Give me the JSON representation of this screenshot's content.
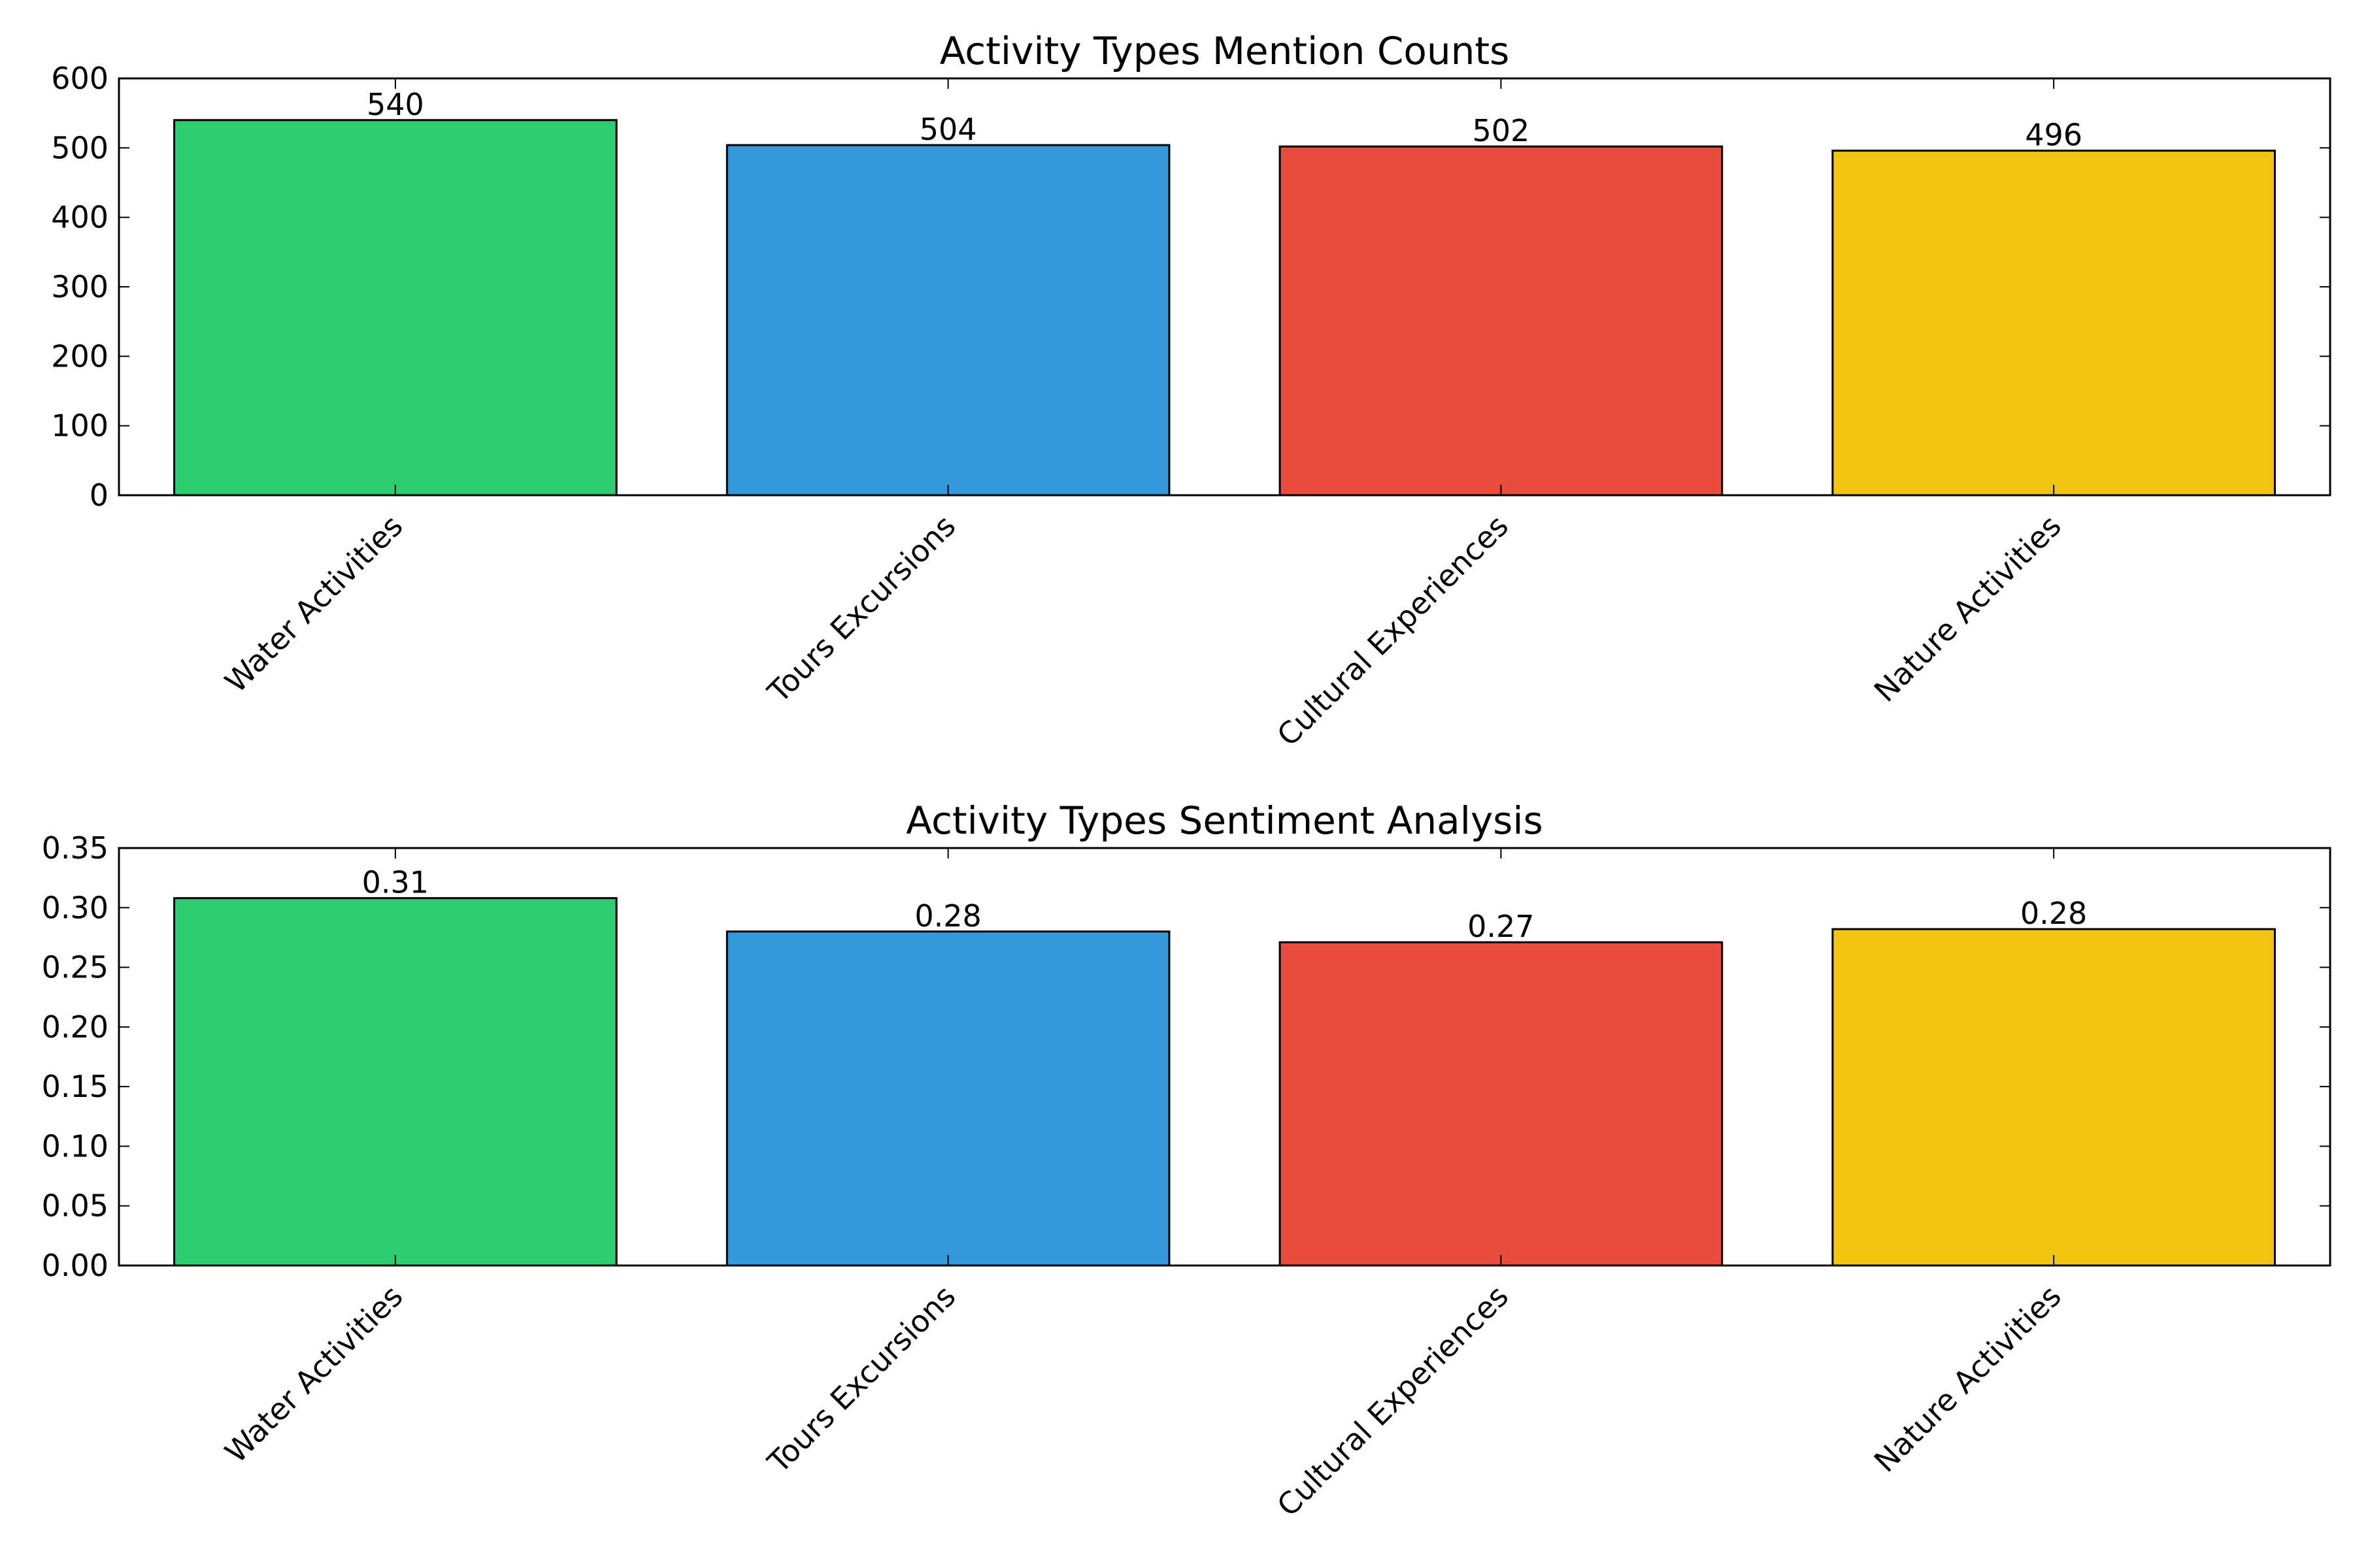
{
  "chart_data": [
    {
      "type": "bar",
      "title": "Activity Types Mention Counts",
      "categories": [
        "Water Activities",
        "Tours Excursions",
        "Cultural Experiences",
        "Nature Activities"
      ],
      "values": [
        540,
        504,
        502,
        496
      ],
      "value_labels": [
        "540",
        "504",
        "502",
        "496"
      ],
      "colors": [
        "#2ecc71",
        "#3498db",
        "#e74c3c",
        "#f1c40f"
      ],
      "ylim": [
        0,
        600
      ],
      "yticks": [
        0,
        100,
        200,
        300,
        400,
        500,
        600
      ],
      "ytick_labels": [
        "0",
        "100",
        "200",
        "300",
        "400",
        "500",
        "600"
      ],
      "xlabel": "",
      "ylabel": "",
      "grid": false
    },
    {
      "type": "bar",
      "title": "Activity Types Sentiment Analysis",
      "categories": [
        "Water Activities",
        "Tours Excursions",
        "Cultural Experiences",
        "Nature Activities"
      ],
      "values": [
        0.308,
        0.28,
        0.271,
        0.282
      ],
      "value_labels": [
        "0.31",
        "0.28",
        "0.27",
        "0.28"
      ],
      "colors": [
        "#2ecc71",
        "#3498db",
        "#e74c3c",
        "#f1c40f"
      ],
      "ylim": [
        0,
        0.35
      ],
      "yticks": [
        0,
        0.05,
        0.1,
        0.15,
        0.2,
        0.25,
        0.3,
        0.35
      ],
      "ytick_labels": [
        "0.00",
        "0.05",
        "0.10",
        "0.15",
        "0.20",
        "0.25",
        "0.30",
        "0.35"
      ],
      "xlabel": "",
      "ylabel": "",
      "grid": false
    }
  ]
}
